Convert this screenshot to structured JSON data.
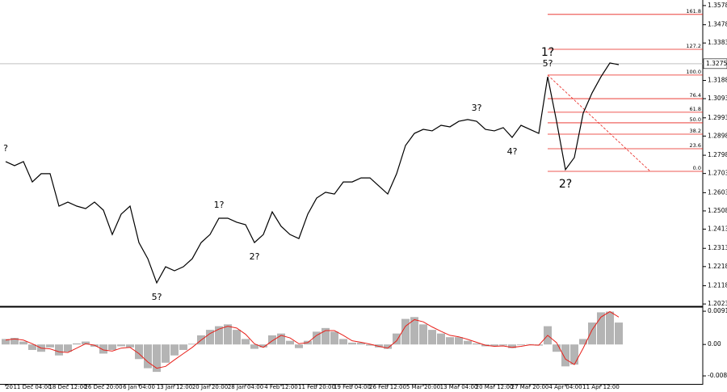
{
  "chart_data": [
    {
      "type": "line",
      "categories": [
        "20",
        null,
        null,
        "11 Dec 04:00",
        null,
        null,
        null,
        "18 Dec 12:00",
        null,
        null,
        null,
        "26 Dec 20:00",
        null,
        null,
        null,
        "6 Jan 04:00",
        null,
        null,
        null,
        "13 Jan 12:00",
        null,
        null,
        null,
        "20 Jan 20:00",
        null,
        null,
        null,
        "28 Jan 04:00",
        null,
        null,
        null,
        "4 Feb 12:00",
        null,
        null,
        null,
        "11 Feb 20:00",
        null,
        null,
        null,
        "19 Feb 04:00",
        null,
        null,
        null,
        "26 Feb 12:00",
        null,
        null,
        null,
        "5 Mar 20:00",
        null,
        null,
        null,
        "13 Mar 04:00",
        null,
        null,
        null,
        "20 Mar 12:00",
        null,
        null,
        null,
        "27 Mar 20:00",
        null,
        null,
        null,
        "4 Apr 04:00",
        null,
        null,
        null,
        "11 Apr 12:00",
        null,
        null
      ],
      "values": [
        1.2765,
        1.2744,
        1.2765,
        1.2659,
        1.2702,
        1.2702,
        1.2533,
        1.2554,
        1.2533,
        1.252,
        1.2554,
        1.2512,
        1.2385,
        1.2491,
        1.2533,
        1.2343,
        1.2259,
        1.2133,
        1.2217,
        1.2196,
        1.2217,
        1.2259,
        1.2343,
        1.2385,
        1.247,
        1.247,
        1.2449,
        1.2436,
        1.2343,
        1.2385,
        1.2503,
        1.2428,
        1.2385,
        1.2364,
        1.2491,
        1.2575,
        1.2605,
        1.2596,
        1.2659,
        1.2659,
        1.268,
        1.268,
        1.2638,
        1.2596,
        1.2702,
        1.2849,
        1.2912,
        1.2933,
        1.2925,
        1.2954,
        1.2946,
        1.2975,
        1.2984,
        1.2975,
        1.2933,
        1.2925,
        1.2942,
        1.2891,
        1.2954,
        1.2933,
        1.2912,
        1.3207,
        1.2975,
        1.2723,
        1.2786,
        1.3018,
        1.3123,
        1.3207,
        1.3279,
        1.327
      ],
      "color": "#000000",
      "ylim": [
        1.2015,
        1.3607
      ],
      "yticks": [
        1.3578,
        1.3478,
        1.3383,
        1.3188,
        1.3093,
        1.2993,
        1.2898,
        1.2798,
        1.2703,
        1.2603,
        1.2508,
        1.2413,
        1.2313,
        1.2218,
        1.2118,
        1.2023
      ],
      "last_price": 1.3275,
      "fib_color": "#e8201a",
      "fib_levels": [
        {
          "label": "161.8",
          "value": 1.3532
        },
        {
          "label": "127.2",
          "value": 1.335
        },
        {
          "label": "100.0",
          "value": 1.3216
        },
        {
          "label": "76.4",
          "value": 1.3093
        },
        {
          "label": "61.8",
          "value": 1.3022
        },
        {
          "label": "50.0",
          "value": 1.2967
        },
        {
          "label": "38.2",
          "value": 1.2908
        },
        {
          "label": "23.6",
          "value": 1.2832
        },
        {
          "label": "0.0",
          "value": 1.2714
        }
      ],
      "waves": [
        {
          "label": "?",
          "index": 0,
          "place": "above",
          "color": "#e8201a"
        },
        {
          "label": "5?",
          "index": 17,
          "place": "below",
          "color": "#e8201a"
        },
        {
          "label": "1?",
          "index": 24,
          "place": "above",
          "color": "#e8201a"
        },
        {
          "label": "2?",
          "index": 28,
          "place": "below",
          "color": "#e8201a"
        },
        {
          "label": "3?",
          "index": 53,
          "place": "above",
          "color": "#e8201a"
        },
        {
          "label": "4?",
          "index": 57,
          "place": "below",
          "color": "#e8201a"
        },
        {
          "label": "5?",
          "index": 61,
          "place": "above",
          "color": "#e8201a"
        },
        {
          "label": "1?",
          "index": 61,
          "place": "above",
          "color": "#1a1ae0"
        },
        {
          "label": "2?",
          "index": 63,
          "place": "below",
          "color": "#1a1ae0"
        }
      ]
    },
    {
      "type": "macd",
      "ylim": [
        -0.0108,
        0.01
      ],
      "yticks": [
        0.0091,
        {
          "value": 0,
          "label": "0.00"
        },
        -0.0086
      ],
      "histogram": {
        "color": "#b4b4b4",
        "values": [
          0.0015,
          0.0018,
          0.0008,
          -0.0015,
          -0.002,
          -0.0008,
          -0.003,
          -0.002,
          0.0003,
          0.0008,
          -0.0006,
          -0.0025,
          -0.0015,
          -0.0005,
          -0.0008,
          -0.004,
          -0.0065,
          -0.0075,
          -0.005,
          -0.003,
          -0.0015,
          0.0002,
          0.0025,
          0.004,
          0.005,
          0.0055,
          0.004,
          0.0015,
          -0.0012,
          -0.0008,
          0.0025,
          0.003,
          0.001,
          -0.001,
          0.001,
          0.0035,
          0.0045,
          0.0035,
          0.0015,
          0.0005,
          0.0005,
          -0.0003,
          -0.0008,
          -0.0012,
          0.003,
          0.007,
          0.0075,
          0.0055,
          0.004,
          0.003,
          0.002,
          0.002,
          0.001,
          0.0003,
          -0.0005,
          -0.0005,
          -0.0003,
          -0.001,
          -0.0002,
          0.0001,
          -0.0003,
          0.005,
          -0.002,
          -0.006,
          -0.0055,
          0.0015,
          0.006,
          0.0088,
          0.009,
          0.006
        ]
      },
      "signal": {
        "color": "#e8201a",
        "values": [
          0.0012,
          0.0015,
          0.0012,
          0.0002,
          -0.001,
          -0.0012,
          -0.002,
          -0.0022,
          -0.001,
          0.0002,
          -0.0002,
          -0.0015,
          -0.0018,
          -0.001,
          -0.0008,
          -0.0025,
          -0.0048,
          -0.0065,
          -0.006,
          -0.0042,
          -0.0025,
          -0.0008,
          0.0012,
          0.003,
          0.0042,
          0.005,
          0.0045,
          0.0028,
          0.0002,
          -0.0008,
          0.001,
          0.0025,
          0.0018,
          0.0002,
          0.0005,
          0.0025,
          0.0038,
          0.0038,
          0.0025,
          0.001,
          0.0006,
          0.0001,
          -0.0005,
          -0.001,
          0.001,
          0.005,
          0.0068,
          0.0062,
          0.0048,
          0.0036,
          0.0025,
          0.0021,
          0.0014,
          0.0006,
          -0.0002,
          -0.0005,
          -0.0004,
          -0.0008,
          -0.0005,
          -0.0001,
          -0.0002,
          0.0025,
          0.0005,
          -0.004,
          -0.0055,
          -0.001,
          0.004,
          0.0075,
          0.009,
          0.0075
        ]
      }
    }
  ]
}
